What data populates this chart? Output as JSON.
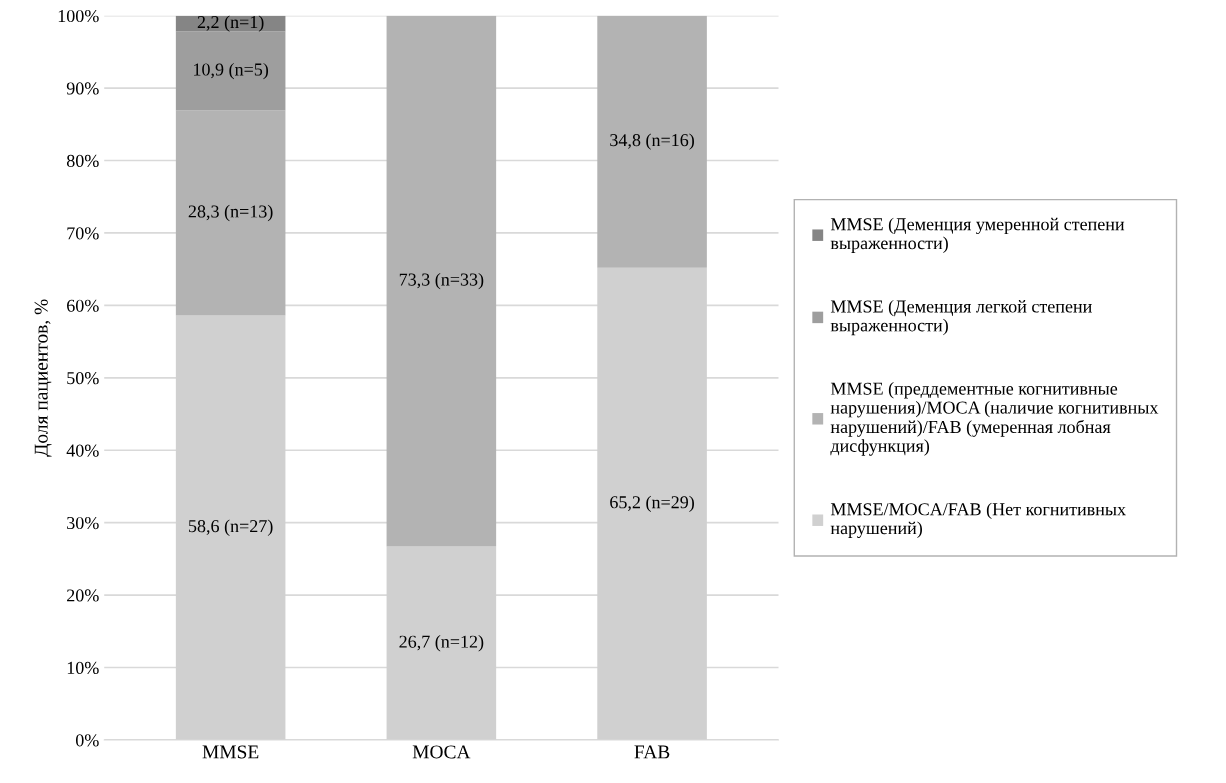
{
  "chart_data": {
    "type": "bar",
    "stacked": true,
    "ylabel": "Доля пациентов, %",
    "categories": [
      "MMSE",
      "MOCA",
      "FAB"
    ],
    "series": [
      {
        "name": "MMSE/MOCA/FAB (Нет когнитивных\nнарушений)",
        "color": "#d0d0d0",
        "values": [
          58.6,
          26.7,
          65.2
        ],
        "value_labels": [
          "58,6 (n=27)",
          "26,7 (n=12)",
          "65,2 (n=29)"
        ]
      },
      {
        "name": "MMSE (преддементные когнитивные\nнарушения)/MOCA (наличие когнитивных\nнарушений)/FAB (умеренная лобная\nдисфункция)",
        "color": "#b3b3b3",
        "values": [
          28.3,
          73.3,
          34.8
        ],
        "value_labels": [
          "28,3 (n=13)",
          "73,3 (n=33)",
          "34,8 (n=16)"
        ]
      },
      {
        "name": "MMSE (Деменция легкой степени\nвыраженности)",
        "color": "#9e9e9e",
        "values": [
          10.9,
          null,
          null
        ],
        "value_labels": [
          "10,9 (n=5)",
          null,
          null
        ]
      },
      {
        "name": "MMSE (Деменция умеренной степени\nвыраженности)",
        "color": "#858585",
        "values": [
          2.2,
          null,
          null
        ],
        "value_labels": [
          "2,2 (n=1)",
          null,
          null
        ]
      }
    ],
    "ylim": [
      0,
      100
    ],
    "yticks": [
      {
        "value": 0,
        "label": "0%"
      },
      {
        "value": 10,
        "label": "10%"
      },
      {
        "value": 20,
        "label": "20%"
      },
      {
        "value": 30,
        "label": "30%"
      },
      {
        "value": 40,
        "label": "40%"
      },
      {
        "value": 50,
        "label": "50%"
      },
      {
        "value": 60,
        "label": "60%"
      },
      {
        "value": 70,
        "label": "70%"
      },
      {
        "value": 80,
        "label": "80%"
      },
      {
        "value": 90,
        "label": "90%"
      },
      {
        "value": 100,
        "label": "100%"
      }
    ],
    "grid": "y",
    "legend": "right"
  }
}
